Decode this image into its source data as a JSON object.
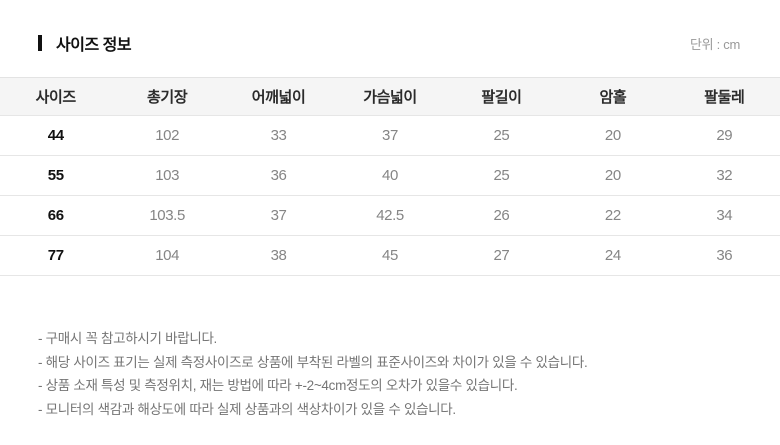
{
  "page": {
    "title": "사이즈 정보",
    "unit_label": "단위 : cm"
  },
  "size_table": {
    "columns": [
      "사이즈",
      "총기장",
      "어깨넓이",
      "가슴넓이",
      "팔길이",
      "암홀",
      "팔둘레"
    ],
    "rows": [
      [
        "44",
        "102",
        "33",
        "37",
        "25",
        "20",
        "29"
      ],
      [
        "55",
        "103",
        "36",
        "40",
        "25",
        "20",
        "32"
      ],
      [
        "66",
        "103.5",
        "37",
        "42.5",
        "26",
        "22",
        "34"
      ],
      [
        "77",
        "104",
        "38",
        "45",
        "27",
        "24",
        "36"
      ]
    ]
  },
  "notes": [
    "- 구매시 꼭 참고하시기 바랍니다.",
    "- 해당 사이즈 표기는 실제 측정사이즈로 상품에 부착된 라벨의 표준사이즈와 차이가 있을 수 있습니다.",
    "- 상품 소재 특성 및 측정위치, 재는 방법에 따라 +-2~4cm정도의 오차가 있을수 있습니다.",
    "- 모니터의 색감과 해상도에 따라 실제 상품과의 색상차이가 있을 수 있습니다."
  ],
  "colors": {
    "title_text": "#111111",
    "header_row_bg": "#f5f5f5",
    "table_border": "#e3e3e3",
    "value_text": "#858585",
    "note_text": "#757575",
    "unit_text": "#999999"
  }
}
